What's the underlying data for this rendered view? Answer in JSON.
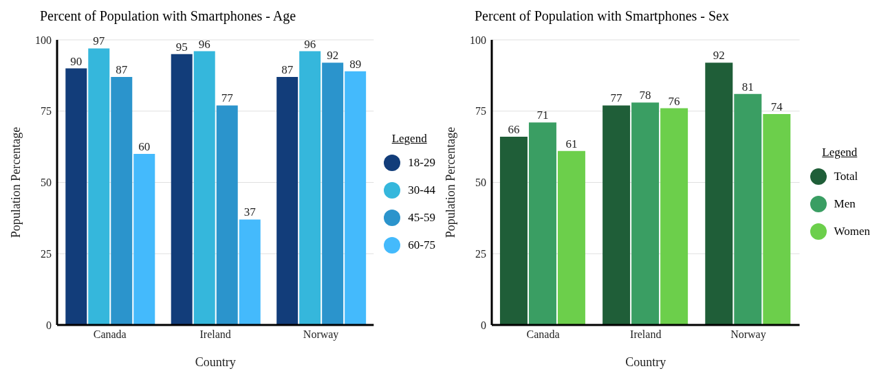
{
  "chart_data": [
    {
      "type": "bar",
      "title": "Percent of Population with Smartphones - Age",
      "xlabel": "Country",
      "ylabel": "Population Percentage",
      "legend_title": "Legend",
      "categories": [
        "Canada",
        "Ireland",
        "Norway"
      ],
      "series": [
        {
          "name": "18-29",
          "color": "#123d7a",
          "values": [
            90,
            95,
            87
          ]
        },
        {
          "name": "30-44",
          "color": "#35b7dc",
          "values": [
            97,
            96,
            96
          ]
        },
        {
          "name": "45-59",
          "color": "#2b94cc",
          "values": [
            87,
            77,
            92
          ]
        },
        {
          "name": "60-75",
          "color": "#44bafc",
          "values": [
            60,
            37,
            89
          ]
        }
      ],
      "ylim": [
        0,
        100
      ],
      "yticks": [
        0,
        25,
        50,
        75,
        100
      ],
      "grid": "y",
      "legend": "right",
      "data_labels": true
    },
    {
      "type": "bar",
      "title": "Percent of Population with Smartphones - Sex",
      "xlabel": "Country",
      "ylabel": "Population Percentage",
      "legend_title": "Legend",
      "categories": [
        "Canada",
        "Ireland",
        "Norway"
      ],
      "series": [
        {
          "name": "Total",
          "color": "#1f5e38",
          "values": [
            66,
            77,
            92
          ]
        },
        {
          "name": "Men",
          "color": "#3a9e63",
          "values": [
            71,
            78,
            81
          ]
        },
        {
          "name": "Women",
          "color": "#6ccf4b",
          "values": [
            61,
            76,
            74
          ]
        }
      ],
      "ylim": [
        0,
        100
      ],
      "yticks": [
        0,
        25,
        50,
        75,
        100
      ],
      "grid": "y",
      "legend": "right",
      "data_labels": true
    }
  ]
}
